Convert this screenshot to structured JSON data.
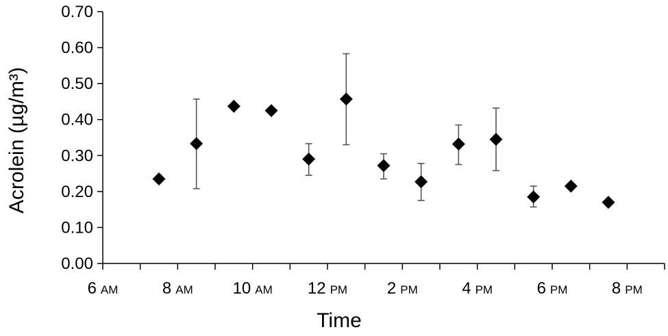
{
  "chart_data": {
    "type": "scatter",
    "title": "",
    "xlabel": "Time",
    "ylabel": "Acrolein (µg/m³)",
    "ylim": [
      0,
      0.7
    ],
    "xlim": [
      6,
      21
    ],
    "grid": false,
    "legend": "none",
    "marker": "diamond",
    "marker_color": "#000000",
    "y_ticks": [
      "0.00",
      "0.10",
      "0.20",
      "0.30",
      "0.40",
      "0.50",
      "0.60",
      "0.70"
    ],
    "y_tick_values": [
      0,
      0.1,
      0.2,
      0.3,
      0.4,
      0.5,
      0.6,
      0.7
    ],
    "x_ticks": [
      {
        "value": 6,
        "num": "6",
        "suffix": "AM"
      },
      {
        "value": 8,
        "num": "8",
        "suffix": "AM"
      },
      {
        "value": 10,
        "num": "10",
        "suffix": "AM"
      },
      {
        "value": 12,
        "num": "12",
        "suffix": "PM"
      },
      {
        "value": 14,
        "num": "2",
        "suffix": "PM"
      },
      {
        "value": 16,
        "num": "4",
        "suffix": "PM"
      },
      {
        "value": 18,
        "num": "6",
        "suffix": "PM"
      },
      {
        "value": 20,
        "num": "8",
        "suffix": "PM"
      }
    ],
    "points": [
      {
        "x": 7.5,
        "y": 0.235
      },
      {
        "x": 8.5,
        "y": 0.333,
        "err_low": 0.208,
        "err_high": 0.457
      },
      {
        "x": 9.5,
        "y": 0.437
      },
      {
        "x": 10.5,
        "y": 0.425
      },
      {
        "x": 11.5,
        "y": 0.29,
        "err_low": 0.245,
        "err_high": 0.333
      },
      {
        "x": 12.5,
        "y": 0.457,
        "err_low": 0.33,
        "err_high": 0.583
      },
      {
        "x": 13.5,
        "y": 0.272,
        "err_low": 0.235,
        "err_high": 0.305
      },
      {
        "x": 14.5,
        "y": 0.227,
        "err_low": 0.175,
        "err_high": 0.278
      },
      {
        "x": 15.5,
        "y": 0.332,
        "err_low": 0.275,
        "err_high": 0.385
      },
      {
        "x": 16.5,
        "y": 0.345,
        "err_low": 0.258,
        "err_high": 0.432
      },
      {
        "x": 17.5,
        "y": 0.185,
        "err_low": 0.157,
        "err_high": 0.215
      },
      {
        "x": 18.5,
        "y": 0.215
      },
      {
        "x": 19.5,
        "y": 0.17
      }
    ]
  }
}
